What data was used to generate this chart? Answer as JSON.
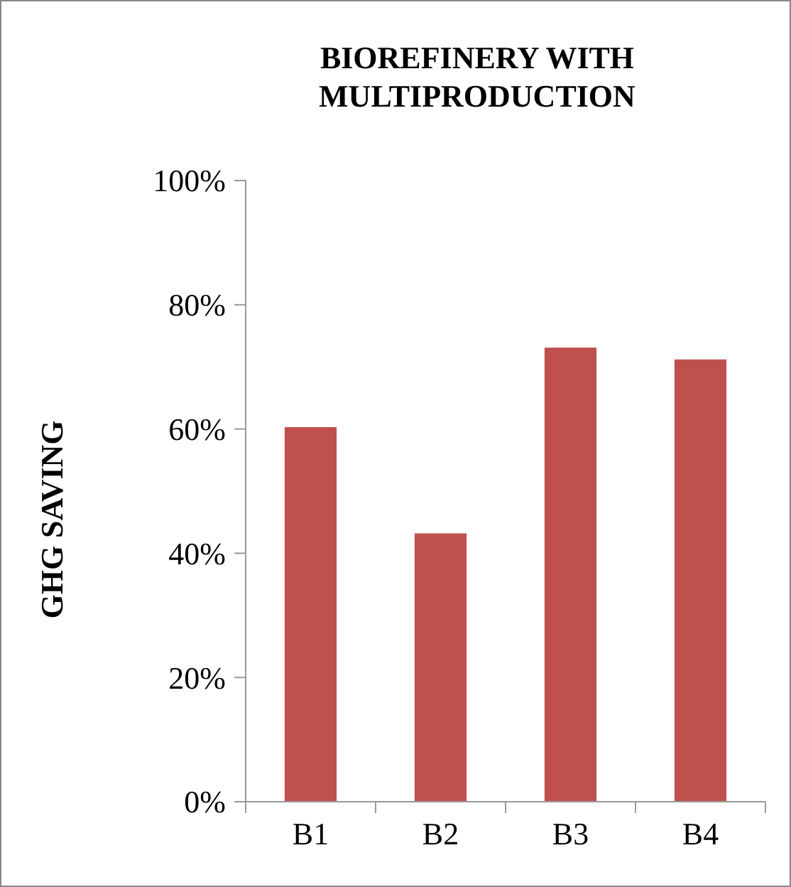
{
  "chart_data": {
    "type": "bar",
    "title": "BIOREFINERY WITH MULTIPRODUCTION",
    "ylabel": "GHG SAVING",
    "categories": [
      "B1",
      "B2",
      "B3",
      "B4"
    ],
    "values": [
      60.3,
      43.2,
      73.1,
      71.2
    ],
    "color": "#c0504d",
    "ylim": [
      0,
      100
    ],
    "yticks": [
      {
        "value": 0,
        "label": "0%"
      },
      {
        "value": 20,
        "label": "20%"
      },
      {
        "value": 40,
        "label": "40%"
      },
      {
        "value": 60,
        "label": "60%"
      },
      {
        "value": 80,
        "label": "80%"
      },
      {
        "value": 100,
        "label": "100%"
      }
    ],
    "grid": false
  }
}
